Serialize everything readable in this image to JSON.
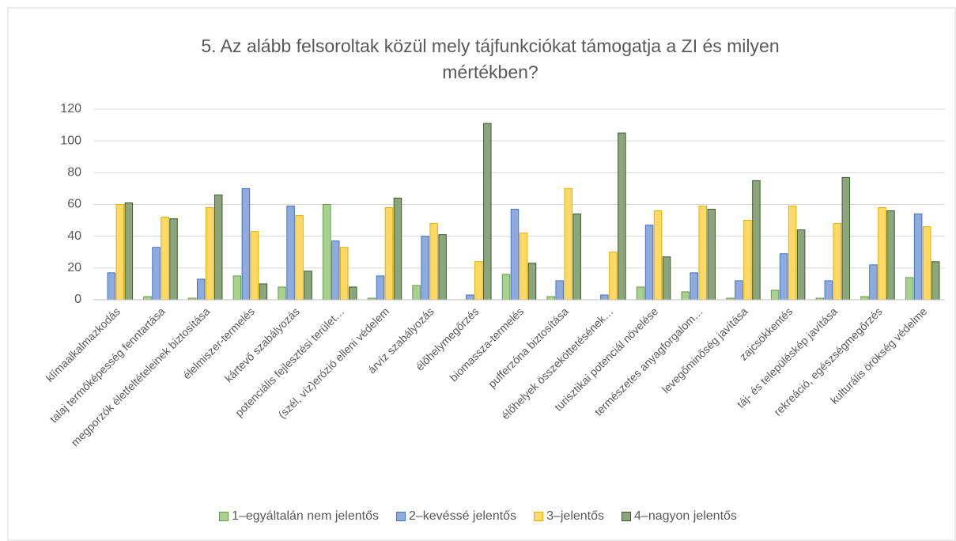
{
  "chart_data": {
    "type": "bar",
    "title": "5. Az alább felsoroltak közül mely tájfunkciókat támogatja a ZI és milyen mértékben?",
    "categories": [
      "klímaalkalmazkodás",
      "talaj termőképesség fenntartása",
      "megporzók életfeltételeinek biztosítása",
      "élelmiszer-termelés",
      "kártevő szabályozás",
      "potenciális fejlesztési terület…",
      "(szél, víz)erózió elleni védelem",
      "árvíz szabályozás",
      "élőhelymegőrzés",
      "biomassza-termelés",
      "pufferzóna biztosítása",
      "élőhelyek összeköttetésének…",
      "turisztikai potenciál növelése",
      "természetes anyagforgalom…",
      "levegőminőség javítása",
      "zajcsökkentés",
      "táj- és településkép javítása",
      "rekreáció, egészségmegőrzés",
      "kulturális örökség védelme"
    ],
    "series": [
      {
        "name": "1–egyáltalán nem jelentős",
        "color": "#a9d18e",
        "values": [
          0,
          2,
          1,
          15,
          8,
          60,
          1,
          9,
          0,
          16,
          2,
          0,
          8,
          5,
          1,
          6,
          1,
          2,
          14
        ]
      },
      {
        "name": "2–kevéssé jelentős",
        "color": "#8faadc",
        "values": [
          17,
          33,
          13,
          70,
          59,
          37,
          15,
          40,
          3,
          57,
          12,
          3,
          47,
          17,
          12,
          29,
          12,
          22,
          54
        ]
      },
      {
        "name": "3–jelentős",
        "color": "#ffd966",
        "values": [
          60,
          52,
          58,
          43,
          53,
          33,
          58,
          48,
          24,
          42,
          70,
          30,
          56,
          59,
          50,
          59,
          48,
          58,
          46
        ]
      },
      {
        "name": "4–nagyon jelentős",
        "color": "#8ba67c",
        "values": [
          61,
          51,
          66,
          10,
          18,
          8,
          64,
          41,
          111,
          23,
          54,
          105,
          27,
          57,
          75,
          44,
          77,
          56,
          24
        ]
      }
    ],
    "ylim": [
      0,
      120
    ],
    "yticks": [
      0,
      20,
      40,
      60,
      80,
      100,
      120
    ],
    "grid": true,
    "legend": "bottom"
  }
}
